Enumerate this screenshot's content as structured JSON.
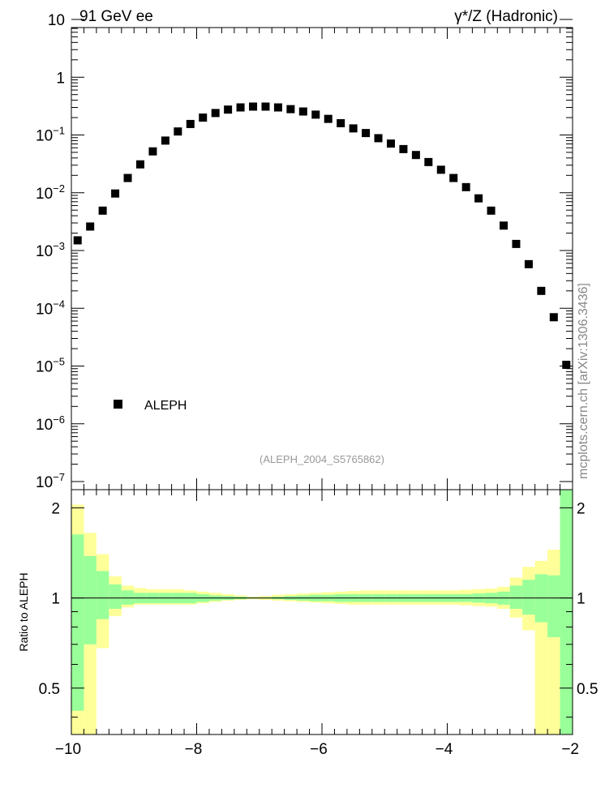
{
  "header": {
    "left_title": "91 GeV ee",
    "right_title": "γ*/Z (Hadronic)",
    "analysis_label": "(ALEPH_2004_S5765862)",
    "side_label": "mcplots.cern.ch [arXiv:1306.3436]"
  },
  "chart_data": [
    {
      "type": "scatter",
      "yscale": "log",
      "xlim": [
        -10,
        -2
      ],
      "ylim": [
        1e-07,
        10
      ],
      "yticks": [
        1e-07,
        1e-06,
        1e-05,
        0.0001,
        0.001,
        0.01,
        0.1,
        1,
        10
      ],
      "ytick_labels": [
        {
          "base": "10",
          "exp": "−7"
        },
        {
          "base": "10",
          "exp": "−6"
        },
        {
          "base": "10",
          "exp": "−5"
        },
        {
          "base": "10",
          "exp": "−4"
        },
        {
          "base": "10",
          "exp": "−3"
        },
        {
          "base": "10",
          "exp": "−2"
        },
        {
          "base": "10",
          "exp": "−1"
        },
        {
          "base": "1",
          "exp": ""
        },
        {
          "base": "10",
          "exp": ""
        }
      ],
      "legend": {
        "entry": "ALEPH",
        "placement": "bottom-left"
      },
      "marker_color": "#000000",
      "series": [
        {
          "name": "ALEPH",
          "x": [
            -9.9,
            -9.7,
            -9.5,
            -9.3,
            -9.1,
            -8.9,
            -8.7,
            -8.5,
            -8.3,
            -8.1,
            -7.9,
            -7.7,
            -7.5,
            -7.3,
            -7.1,
            -6.9,
            -6.7,
            -6.5,
            -6.3,
            -6.1,
            -5.9,
            -5.7,
            -5.5,
            -5.3,
            -5.1,
            -4.9,
            -4.7,
            -4.5,
            -4.3,
            -4.1,
            -3.9,
            -3.7,
            -3.5,
            -3.3,
            -3.1,
            -2.9,
            -2.7,
            -2.5,
            -2.3,
            -2.1
          ],
          "y": [
            0.0015,
            0.0026,
            0.0049,
            0.0097,
            0.018,
            0.031,
            0.052,
            0.08,
            0.115,
            0.155,
            0.2,
            0.24,
            0.275,
            0.3,
            0.31,
            0.31,
            0.3,
            0.28,
            0.255,
            0.225,
            0.19,
            0.16,
            0.13,
            0.108,
            0.088,
            0.071,
            0.057,
            0.045,
            0.034,
            0.025,
            0.018,
            0.0125,
            0.008,
            0.0049,
            0.0027,
            0.0013,
            0.00058,
            0.0002,
            7e-05,
            1.05e-05
          ]
        }
      ]
    },
    {
      "type": "area",
      "ylabel": "Ratio to ALEPH",
      "xlim": [
        -10,
        -2
      ],
      "ylim": [
        0.35,
        2.3
      ],
      "xticks": [
        -10,
        -8,
        -6,
        -4,
        -2
      ],
      "xtick_labels": [
        "−10",
        "−8",
        "−6",
        "−4",
        "−2"
      ],
      "yticks": [
        0.5,
        1,
        2
      ],
      "ytick_labels": [
        "0.5",
        "1",
        "2"
      ],
      "reference_line": 1,
      "colors": {
        "stat_band": "#99ff99",
        "total_band": "#ffff99",
        "line": "#000000"
      },
      "bins": [
        {
          "x0": -10.0,
          "x1": -9.8,
          "green": [
            0.42,
            1.63
          ],
          "yellow": [
            0.35,
            2.05
          ]
        },
        {
          "x0": -9.8,
          "x1": -9.6,
          "green": [
            0.7,
            1.38
          ],
          "yellow": [
            0.35,
            1.65
          ]
        },
        {
          "x0": -9.6,
          "x1": -9.4,
          "green": [
            0.85,
            1.23
          ],
          "yellow": [
            0.68,
            1.4
          ]
        },
        {
          "x0": -9.4,
          "x1": -9.2,
          "green": [
            0.92,
            1.11
          ],
          "yellow": [
            0.87,
            1.18
          ]
        },
        {
          "x0": -9.2,
          "x1": -9.0,
          "green": [
            0.95,
            1.06
          ],
          "yellow": [
            0.93,
            1.1
          ]
        },
        {
          "x0": -9.0,
          "x1": -8.8,
          "green": [
            0.96,
            1.04
          ],
          "yellow": [
            0.95,
            1.08
          ]
        },
        {
          "x0": -8.8,
          "x1": -8.6,
          "green": [
            0.96,
            1.04
          ],
          "yellow": [
            0.95,
            1.07
          ]
        },
        {
          "x0": -8.6,
          "x1": -8.4,
          "green": [
            0.96,
            1.04
          ],
          "yellow": [
            0.95,
            1.07
          ]
        },
        {
          "x0": -8.4,
          "x1": -8.2,
          "green": [
            0.96,
            1.04
          ],
          "yellow": [
            0.95,
            1.07
          ]
        },
        {
          "x0": -8.2,
          "x1": -8.0,
          "green": [
            0.96,
            1.04
          ],
          "yellow": [
            0.95,
            1.06
          ]
        },
        {
          "x0": -8.0,
          "x1": -7.8,
          "green": [
            0.97,
            1.03
          ],
          "yellow": [
            0.96,
            1.05
          ]
        },
        {
          "x0": -7.8,
          "x1": -7.6,
          "green": [
            0.98,
            1.02
          ],
          "yellow": [
            0.97,
            1.04
          ]
        },
        {
          "x0": -7.6,
          "x1": -7.4,
          "green": [
            0.985,
            1.015
          ],
          "yellow": [
            0.98,
            1.03
          ]
        },
        {
          "x0": -7.4,
          "x1": -7.2,
          "green": [
            0.99,
            1.01
          ],
          "yellow": [
            0.985,
            1.02
          ]
        },
        {
          "x0": -7.2,
          "x1": -7.0,
          "green": [
            0.995,
            1.005
          ],
          "yellow": [
            0.99,
            1.01
          ]
        },
        {
          "x0": -7.0,
          "x1": -6.8,
          "green": [
            0.995,
            1.005
          ],
          "yellow": [
            0.985,
            1.015
          ]
        },
        {
          "x0": -6.8,
          "x1": -6.6,
          "green": [
            0.99,
            1.01
          ],
          "yellow": [
            0.98,
            1.025
          ]
        },
        {
          "x0": -6.6,
          "x1": -6.4,
          "green": [
            0.985,
            1.015
          ],
          "yellow": [
            0.975,
            1.03
          ]
        },
        {
          "x0": -6.4,
          "x1": -6.2,
          "green": [
            0.98,
            1.02
          ],
          "yellow": [
            0.97,
            1.035
          ]
        },
        {
          "x0": -6.2,
          "x1": -6.0,
          "green": [
            0.975,
            1.025
          ],
          "yellow": [
            0.965,
            1.04
          ]
        },
        {
          "x0": -6.0,
          "x1": -5.8,
          "green": [
            0.975,
            1.025
          ],
          "yellow": [
            0.96,
            1.045
          ]
        },
        {
          "x0": -5.8,
          "x1": -5.6,
          "green": [
            0.97,
            1.03
          ],
          "yellow": [
            0.955,
            1.05
          ]
        },
        {
          "x0": -5.6,
          "x1": -5.4,
          "green": [
            0.97,
            1.03
          ],
          "yellow": [
            0.95,
            1.055
          ]
        },
        {
          "x0": -5.4,
          "x1": -5.2,
          "green": [
            0.97,
            1.03
          ],
          "yellow": [
            0.95,
            1.06
          ]
        },
        {
          "x0": -5.2,
          "x1": -5.0,
          "green": [
            0.97,
            1.03
          ],
          "yellow": [
            0.95,
            1.06
          ]
        },
        {
          "x0": -5.0,
          "x1": -4.8,
          "green": [
            0.97,
            1.03
          ],
          "yellow": [
            0.95,
            1.06
          ]
        },
        {
          "x0": -4.8,
          "x1": -4.6,
          "green": [
            0.97,
            1.03
          ],
          "yellow": [
            0.95,
            1.06
          ]
        },
        {
          "x0": -4.6,
          "x1": -4.4,
          "green": [
            0.97,
            1.03
          ],
          "yellow": [
            0.95,
            1.06
          ]
        },
        {
          "x0": -4.4,
          "x1": -4.2,
          "green": [
            0.97,
            1.03
          ],
          "yellow": [
            0.95,
            1.06
          ]
        },
        {
          "x0": -4.2,
          "x1": -4.0,
          "green": [
            0.97,
            1.03
          ],
          "yellow": [
            0.95,
            1.06
          ]
        },
        {
          "x0": -4.0,
          "x1": -3.8,
          "green": [
            0.97,
            1.03
          ],
          "yellow": [
            0.95,
            1.06
          ]
        },
        {
          "x0": -3.8,
          "x1": -3.6,
          "green": [
            0.97,
            1.03
          ],
          "yellow": [
            0.945,
            1.065
          ]
        },
        {
          "x0": -3.6,
          "x1": -3.4,
          "green": [
            0.965,
            1.035
          ],
          "yellow": [
            0.94,
            1.07
          ]
        },
        {
          "x0": -3.4,
          "x1": -3.2,
          "green": [
            0.96,
            1.04
          ],
          "yellow": [
            0.935,
            1.075
          ]
        },
        {
          "x0": -3.2,
          "x1": -3.0,
          "green": [
            0.95,
            1.05
          ],
          "yellow": [
            0.92,
            1.09
          ]
        },
        {
          "x0": -3.0,
          "x1": -2.8,
          "green": [
            0.92,
            1.1
          ],
          "yellow": [
            0.86,
            1.17
          ]
        },
        {
          "x0": -2.8,
          "x1": -2.6,
          "green": [
            0.88,
            1.15
          ],
          "yellow": [
            0.78,
            1.27
          ]
        },
        {
          "x0": -2.6,
          "x1": -2.4,
          "green": [
            0.83,
            1.2
          ],
          "yellow": [
            0.35,
            1.33
          ]
        },
        {
          "x0": -2.4,
          "x1": -2.2,
          "green": [
            0.74,
            1.19
          ],
          "yellow": [
            0.35,
            1.45
          ]
        },
        {
          "x0": -2.2,
          "x1": -2.0,
          "green": [
            0.35,
            2.3
          ],
          "yellow": [
            0.35,
            2.3
          ]
        }
      ]
    }
  ]
}
